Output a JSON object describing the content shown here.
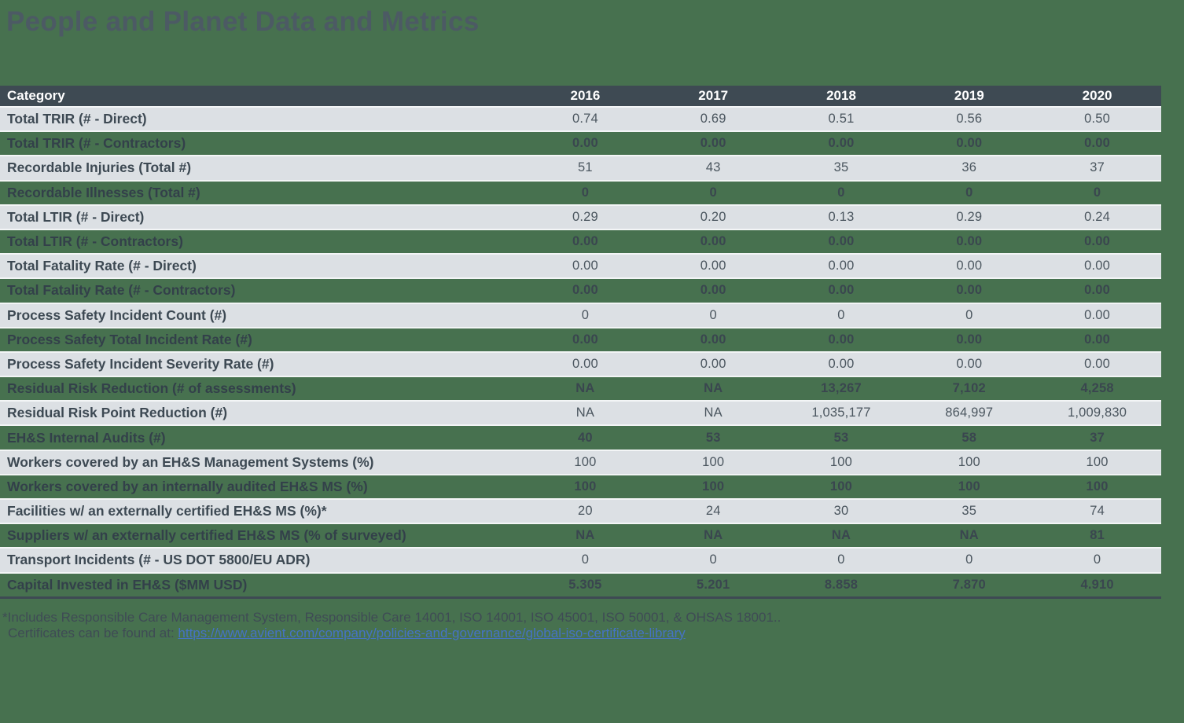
{
  "title": "People and Planet Data and Metrics",
  "table": {
    "header": {
      "category": "Category",
      "years": [
        "2016",
        "2017",
        "2018",
        "2019",
        "2020"
      ]
    },
    "rows": [
      {
        "label": "Total TRIR (# - Direct)",
        "values": [
          "0.74",
          "0.69",
          "0.51",
          "0.56",
          "0.50"
        ]
      },
      {
        "label": "Total TRIR (# - Contractors)",
        "values": [
          "0.00",
          "0.00",
          "0.00",
          "0.00",
          "0.00"
        ]
      },
      {
        "label": "Recordable Injuries (Total #)",
        "values": [
          "51",
          "43",
          "35",
          "36",
          "37"
        ]
      },
      {
        "label": "Recordable Illnesses (Total #)",
        "values": [
          "0",
          "0",
          "0",
          "0",
          "0"
        ]
      },
      {
        "label": "Total LTIR (# - Direct)",
        "values": [
          "0.29",
          "0.20",
          "0.13",
          "0.29",
          "0.24"
        ]
      },
      {
        "label": "Total LTIR (# - Contractors)",
        "values": [
          "0.00",
          "0.00",
          "0.00",
          "0.00",
          "0.00"
        ]
      },
      {
        "label": "Total Fatality Rate (# - Direct)",
        "values": [
          "0.00",
          "0.00",
          "0.00",
          "0.00",
          "0.00"
        ]
      },
      {
        "label": "Total Fatality Rate (# - Contractors)",
        "values": [
          "0.00",
          "0.00",
          "0.00",
          "0.00",
          "0.00"
        ]
      },
      {
        "label": "Process Safety Incident Count (#)",
        "values": [
          "0",
          "0",
          "0",
          "0",
          "0.00"
        ]
      },
      {
        "label": "Process Safety Total Incident Rate (#)",
        "values": [
          "0.00",
          "0.00",
          "0.00",
          "0.00",
          "0.00"
        ]
      },
      {
        "label": "Process Safety Incident Severity Rate (#)",
        "values": [
          "0.00",
          "0.00",
          "0.00",
          "0.00",
          "0.00"
        ]
      },
      {
        "label": "Residual Risk Reduction (# of assessments)",
        "values": [
          "NA",
          "NA",
          "13,267",
          "7,102",
          "4,258"
        ]
      },
      {
        "label": "Residual Risk Point Reduction (#)",
        "values": [
          "NA",
          "NA",
          "1,035,177",
          "864,997",
          "1,009,830"
        ]
      },
      {
        "label": "EH&S Internal Audits (#)",
        "values": [
          "40",
          "53",
          "53",
          "58",
          "37"
        ]
      },
      {
        "label": "Workers covered by an EH&S Management Systems (%)",
        "values": [
          "100",
          "100",
          "100",
          "100",
          "100"
        ]
      },
      {
        "label": "Workers covered by an internally audited EH&S MS (%)",
        "values": [
          "100",
          "100",
          "100",
          "100",
          "100"
        ]
      },
      {
        "label": "Facilities w/ an externally certified EH&S MS (%)*",
        "values": [
          "20",
          "24",
          "30",
          "35",
          "74"
        ]
      },
      {
        "label": "Suppliers w/ an externally certified EH&S MS (% of surveyed)",
        "values": [
          "NA",
          "NA",
          "NA",
          "NA",
          "81"
        ]
      },
      {
        "label": "Transport Incidents (# - US DOT 5800/EU ADR)",
        "values": [
          "0",
          "0",
          "0",
          "0",
          "0"
        ]
      },
      {
        "label": "Capital Invested in EH&S ($MM USD)",
        "values": [
          "5.305",
          "5.201",
          "8.858",
          "7.870",
          "4.910"
        ]
      }
    ]
  },
  "footnote": {
    "line1": "*Includes Responsible Care Management System, Responsible Care 14001, ISO 14001, ISO 45001, ISO 50001, & OHSAS 18001..",
    "line2_prefix": "Certificates can be found at: ",
    "link_text": "https://www.avient.com/company/policies-and-governance/global-iso-certificate-library"
  },
  "colors": {
    "page_background": "#47714F",
    "header_background": "#3E4A53",
    "row_alt_background": "#DCE0E4",
    "row_separator": "#F3F5F6",
    "title_text": "#4C5A64",
    "link_blue": "#4573C4"
  }
}
